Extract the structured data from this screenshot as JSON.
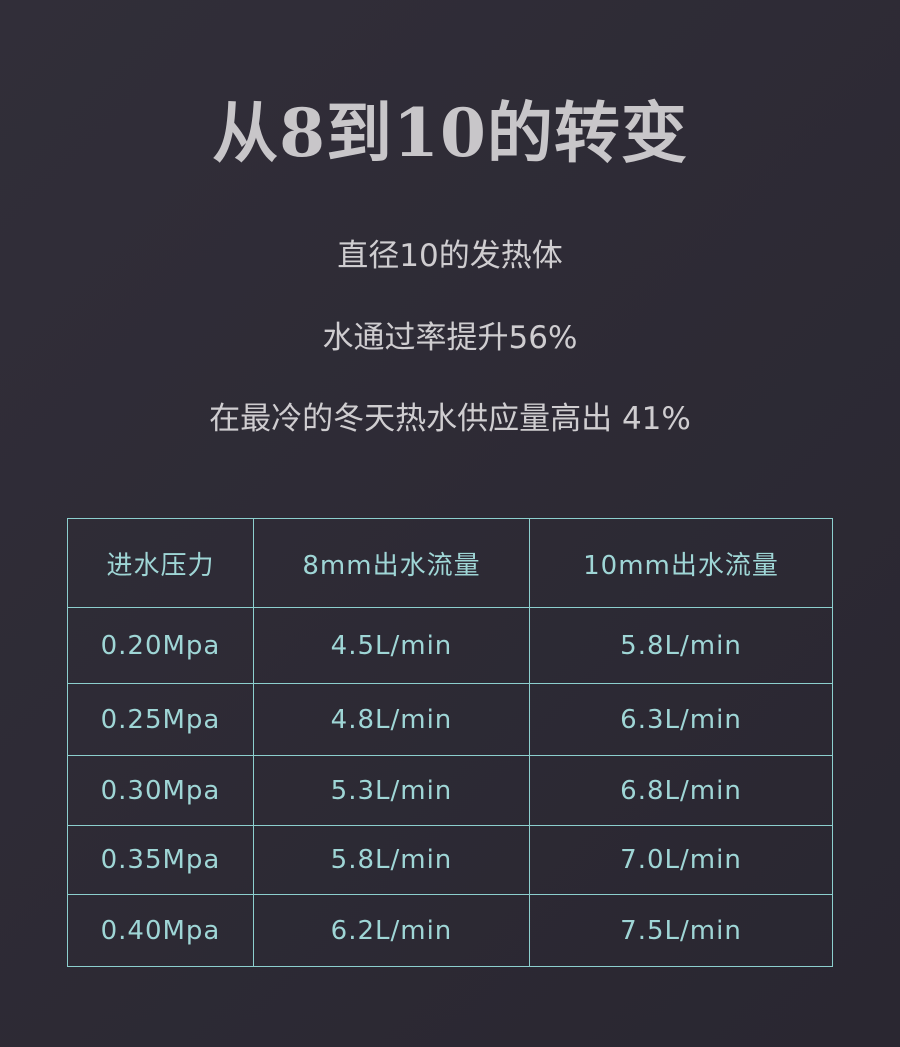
{
  "title": "从8到10的转变",
  "lines": [
    "直径10的发热体",
    "水通过率提升56%",
    "在最冷的冬天热水供应量高出 41%"
  ],
  "colors": {
    "background": "#2d2a35",
    "table_accent": "#9fd6d6",
    "text": "#cfcdd0"
  },
  "table": {
    "headers": [
      "进水压力",
      "8mm出水流量",
      "10mm出水流量"
    ],
    "rows": [
      [
        "0.20Mpa",
        "4.5L/min",
        "5.8L/min"
      ],
      [
        "0.25Mpa",
        "4.8L/min",
        "6.3L/min"
      ],
      [
        "0.30Mpa",
        "5.3L/min",
        "6.8L/min"
      ],
      [
        "0.35Mpa",
        "5.8L/min",
        "7.0L/min"
      ],
      [
        "0.40Mpa",
        "6.2L/min",
        "7.5L/min"
      ]
    ]
  }
}
